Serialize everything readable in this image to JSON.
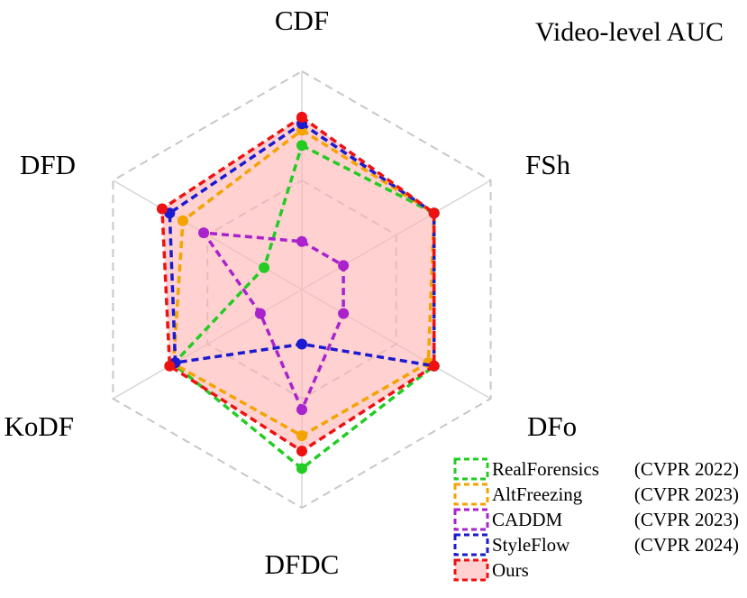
{
  "chart_data": {
    "type": "radar",
    "title": "Video-level AUC",
    "axes": [
      "CDF",
      "FSh",
      "DFo",
      "DFDC",
      "KoDF",
      "DFD"
    ],
    "rlim": [
      0,
      1
    ],
    "grid_levels": [
      0.5,
      1.0
    ],
    "series": [
      {
        "name": "RealForensics",
        "venue": "(CVPR 2022)",
        "color": "#22cc22",
        "fill": false,
        "values": [
          0.66,
          0.7,
          0.7,
          0.82,
          0.68,
          0.2
        ]
      },
      {
        "name": "AltFreezing",
        "venue": "(CVPR 2023)",
        "color": "#f4a300",
        "fill": false,
        "values": [
          0.73,
          0.7,
          0.67,
          0.67,
          0.68,
          0.63
        ]
      },
      {
        "name": "CADDM",
        "venue": "(CVPR 2023)",
        "color": "#aa22cc",
        "fill": false,
        "values": [
          0.22,
          0.22,
          0.22,
          0.55,
          0.22,
          0.52
        ]
      },
      {
        "name": "StyleFlow",
        "venue": "(CVPR 2024)",
        "color": "#1a1ad0",
        "fill": false,
        "values": [
          0.76,
          0.7,
          0.7,
          0.25,
          0.67,
          0.7
        ]
      },
      {
        "name": "Ours",
        "venue": "",
        "color": "#ee1111",
        "fill": true,
        "fill_color": "#ffb3b3",
        "values": [
          0.79,
          0.7,
          0.7,
          0.74,
          0.7,
          0.74
        ]
      }
    ]
  }
}
